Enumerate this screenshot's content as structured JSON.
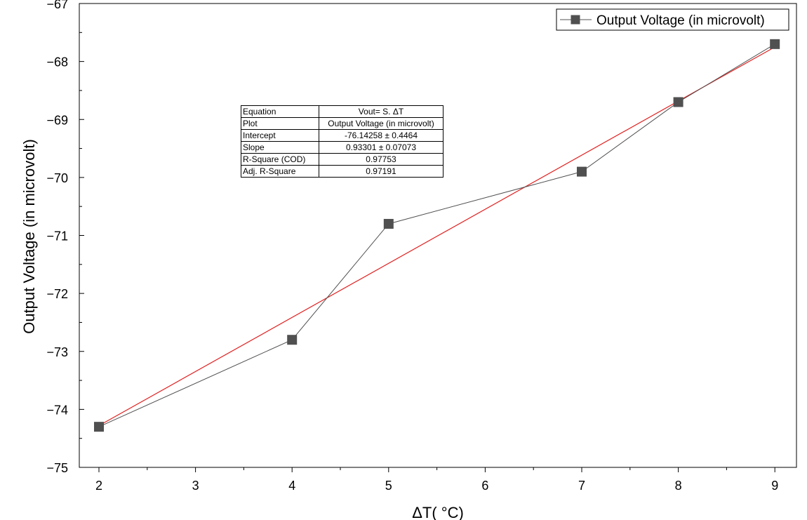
{
  "chart_data": {
    "type": "line",
    "title": "",
    "xlabel": "ΔT( °C)",
    "ylabel": "Output Voltage (in microvolt)",
    "x_categories": [
      "2",
      "3",
      "4",
      "5",
      "6",
      "7",
      "8",
      "9"
    ],
    "ylim": [
      -75,
      -67
    ],
    "y_ticks": [
      -75,
      -74,
      -73,
      -72,
      -71,
      -70,
      -69,
      -68,
      -67
    ],
    "y_tick_labels": [
      "−75",
      "−74",
      "−73",
      "−72",
      "−71",
      "−70",
      "−69",
      "−68",
      "−67"
    ],
    "legend_position": "top-right",
    "series": [
      {
        "name": "Output Voltage (in microvolt)",
        "color": "#505050",
        "marker": "square",
        "x": [
          2,
          4,
          5,
          7,
          8,
          9
        ],
        "y": [
          -74.3,
          -72.8,
          -70.8,
          -69.9,
          -68.7,
          -67.7
        ]
      }
    ],
    "fit_line": {
      "color": "#e02020",
      "x": [
        2,
        9
      ],
      "y": [
        -74.28,
        -67.75
      ]
    }
  },
  "stats_table": {
    "rows": [
      {
        "key": "Equation",
        "value": "Vout= S. ΔT"
      },
      {
        "key": "Plot",
        "value": "Output Voltage (in microvolt)"
      },
      {
        "key": "Intercept",
        "value": "-76.14258 ± 0.4464"
      },
      {
        "key": "Slope",
        "value": "0.93301 ± 0.07073"
      },
      {
        "key": "R-Square (COD)",
        "value": "0.97753"
      },
      {
        "key": "Adj. R-Square",
        "value": "0.97191"
      }
    ]
  }
}
